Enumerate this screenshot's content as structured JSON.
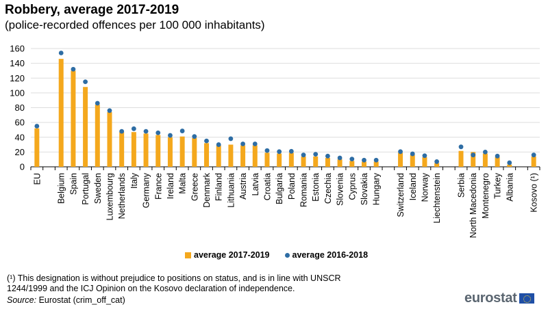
{
  "title": "Robbery, average 2017-2019",
  "subtitle": "(police-recorded offences per 100 000 inhabitants)",
  "colors": {
    "bar": "#F4A81D",
    "dot": "#2E6DA4",
    "grid": "#dddddd",
    "axis": "#000000"
  },
  "legend": {
    "bar_label": "average 2017-2019",
    "dot_label": "average 2016-2018"
  },
  "footnote": "(¹) This designation is without prejudice to positions on status, and is in line with UNSCR 1244/1999 and the ICJ Opinion on the Kosovo declaration of independence.",
  "source_label": "Source:",
  "source_text": " Eurostat (crim_off_cat)",
  "logo_text": "eurostat",
  "chart_data": {
    "type": "bar",
    "title": "Robbery, average 2017-2019",
    "subtitle": "(police-recorded offences per 100 000 inhabitants)",
    "xlabel": "",
    "ylabel": "",
    "ylim": [
      0,
      160
    ],
    "yticks": [
      0,
      20,
      40,
      60,
      80,
      100,
      120,
      140,
      160
    ],
    "grid": true,
    "legend_position": "bottom",
    "categories": [
      "EU",
      "",
      "Belgium",
      "Spain",
      "Portugal",
      "Sweden",
      "Luxembourg",
      "Netherlands",
      "Italy",
      "Germany",
      "France",
      "Ireland",
      "Malta",
      "Greece",
      "Denmark",
      "Finland",
      "Lithuania",
      "Austria",
      "Latvia",
      "Croatia",
      "Bulgaria",
      "Poland",
      "Romania",
      "Estonia",
      "Czechia",
      "Slovenia",
      "Cyprus",
      "Slovakia",
      "Hungary",
      "",
      "Switzerland",
      "Iceland",
      "Norway",
      "Liechtenstein",
      "",
      "Serbia",
      "North Macedonia",
      "Montenegro",
      "Turkey",
      "Albania",
      "",
      "Kosovo (¹)"
    ],
    "series": [
      {
        "name": "average 2017-2019",
        "kind": "bar",
        "values": [
          52,
          null,
          146,
          130,
          108,
          84,
          74,
          47,
          47,
          45,
          43,
          40,
          41,
          39,
          32,
          29,
          30,
          29,
          29,
          19,
          18,
          19,
          14,
          14,
          12,
          10,
          8,
          7,
          7,
          null,
          19,
          16,
          13,
          5,
          null,
          21.5,
          20,
          18,
          13,
          3,
          null,
          14
        ]
      },
      {
        "name": "average 2016-2018",
        "kind": "dot",
        "values": [
          55,
          null,
          154,
          132,
          115,
          86,
          76,
          48,
          51.5,
          48,
          46,
          42.5,
          48.5,
          41,
          35,
          30,
          38,
          31,
          31,
          22,
          20.5,
          21,
          16,
          17,
          14.5,
          12,
          10.5,
          9,
          9,
          null,
          20.5,
          17.5,
          15,
          7,
          null,
          27,
          16,
          20,
          14.5,
          5.5,
          null,
          16
        ]
      }
    ]
  }
}
